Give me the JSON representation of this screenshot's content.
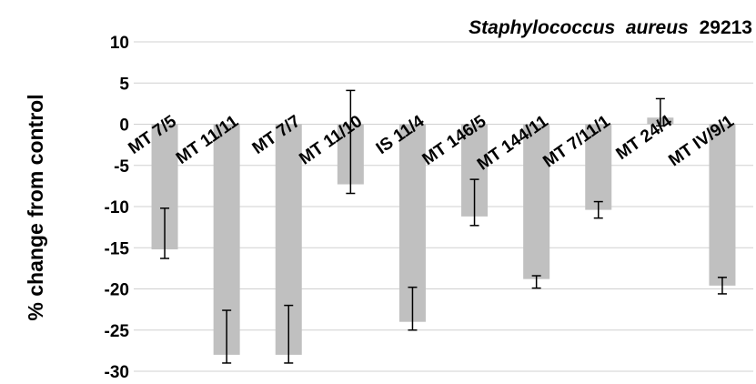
{
  "chart_data": {
    "type": "bar",
    "title_italic": "Staphylococcus  aureus",
    "title_plain": "29213",
    "xlabel": "",
    "ylabel": "% change from control",
    "ylim": [
      -30,
      10
    ],
    "yticks": [
      10,
      5,
      0,
      -5,
      -10,
      -15,
      -20,
      -25,
      -30
    ],
    "grid": true,
    "legend": "none",
    "bar_color": "#c0c0c0",
    "categories": [
      "MT 7/5",
      "MT 11/11",
      "MT 7/7",
      "MT 11/10",
      "IS 11/4",
      "MT 146/5",
      "MT 144/11",
      "MT 7/11/1",
      "MT 24/4",
      "MT IV/9/1"
    ],
    "values": [
      -15.2,
      -28.0,
      -28.0,
      -7.3,
      -24.0,
      -11.2,
      -18.8,
      -10.4,
      0.8,
      -19.6
    ],
    "err_low": [
      -16.3,
      -29.0,
      -29.0,
      -8.4,
      -25.0,
      -12.3,
      -19.9,
      -11.4,
      -0.2,
      -20.6
    ],
    "err_high": [
      -10.2,
      -22.6,
      -22.0,
      4.1,
      -19.8,
      -6.7,
      -18.4,
      -9.4,
      3.1,
      -18.6
    ]
  }
}
